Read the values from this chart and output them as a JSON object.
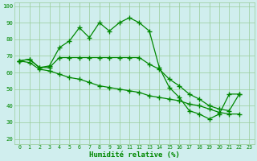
{
  "xlabel": "Humidité relative (%)",
  "bg_color": "#d0eeee",
  "grid_color": "#99cc99",
  "line_color": "#008800",
  "xlim": [
    -0.5,
    23.5
  ],
  "ylim": [
    17,
    102
  ],
  "yticks": [
    20,
    30,
    40,
    50,
    60,
    70,
    80,
    90,
    100
  ],
  "xticks": [
    0,
    1,
    2,
    3,
    4,
    5,
    6,
    7,
    8,
    9,
    10,
    11,
    12,
    13,
    14,
    15,
    16,
    17,
    18,
    19,
    20,
    21,
    22,
    23
  ],
  "s1_x": [
    0,
    1,
    2,
    3,
    4,
    5,
    6,
    7,
    8,
    9,
    10,
    11,
    12,
    13,
    14,
    15,
    16,
    17,
    18,
    19,
    20,
    21,
    22
  ],
  "s1_y": [
    67,
    68,
    63,
    64,
    75,
    79,
    87,
    81,
    90,
    85,
    90,
    93,
    90,
    85,
    63,
    51,
    45,
    37,
    35,
    32,
    35,
    47,
    47
  ],
  "s2_x": [
    0,
    1,
    2,
    3,
    4,
    5,
    6,
    7,
    8,
    9,
    10,
    11,
    12,
    13,
    14,
    15,
    16,
    17,
    18,
    19,
    20,
    21,
    22
  ],
  "s2_y": [
    67,
    68,
    63,
    63,
    69,
    69,
    69,
    69,
    69,
    69,
    69,
    69,
    69,
    65,
    62,
    56,
    52,
    47,
    44,
    40,
    38,
    37,
    47
  ],
  "s3_x": [
    0,
    1,
    2,
    3,
    4,
    5,
    6,
    7,
    8,
    9,
    10,
    11,
    12,
    13,
    14,
    15,
    16,
    17,
    18,
    19,
    20,
    21,
    22
  ],
  "s3_y": [
    67,
    66,
    62,
    61,
    59,
    57,
    56,
    54,
    52,
    51,
    50,
    49,
    48,
    46,
    45,
    44,
    43,
    41,
    40,
    38,
    36,
    35,
    35
  ]
}
